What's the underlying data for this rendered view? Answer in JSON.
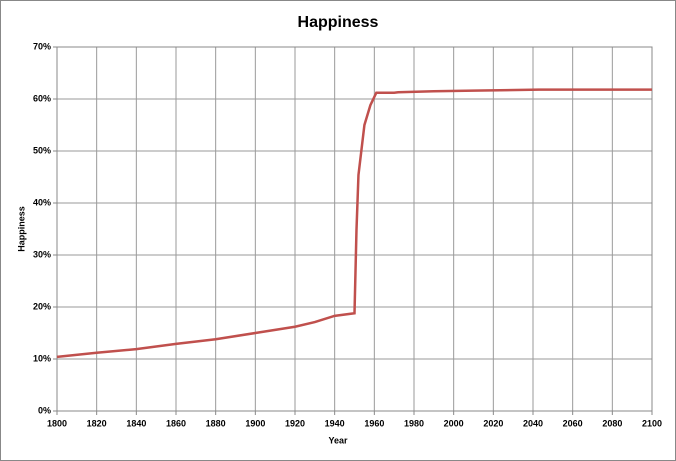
{
  "chart_data": {
    "type": "line",
    "title": "Happiness",
    "x_label": "Year",
    "y_label": "Happiness",
    "x": [
      1800,
      1820,
      1840,
      1860,
      1880,
      1900,
      1920,
      1930,
      1940,
      1950,
      1951,
      1952,
      1955,
      1958,
      1961,
      1970,
      1972,
      1990,
      2010,
      2043,
      2100
    ],
    "series": [
      {
        "name": "Happiness",
        "color": "#c0504d",
        "values": [
          10.4,
          11.2,
          11.9,
          12.9,
          13.8,
          15,
          16.2,
          17.1,
          18.3,
          18.8,
          34.8,
          45.4,
          55,
          58.8,
          61.2,
          61.2,
          61.3,
          61.5,
          61.6,
          61.8,
          61.8
        ]
      }
    ],
    "xlim": [
      1800,
      2100
    ],
    "xticks": [
      1800,
      1820,
      1840,
      1860,
      1880,
      1900,
      1920,
      1940,
      1960,
      1980,
      2000,
      2020,
      2040,
      2060,
      2080,
      2100
    ],
    "ylim": [
      0,
      70
    ],
    "yticks": [
      {
        "value": 0,
        "label": "0%"
      },
      {
        "value": 10,
        "label": "10%"
      },
      {
        "value": 20,
        "label": "20%"
      },
      {
        "value": 30,
        "label": "30%"
      },
      {
        "value": 40,
        "label": "40%"
      },
      {
        "value": 50,
        "label": "50%"
      },
      {
        "value": 60,
        "label": "60%"
      },
      {
        "value": 70,
        "label": "70%"
      }
    ],
    "grid": true
  }
}
